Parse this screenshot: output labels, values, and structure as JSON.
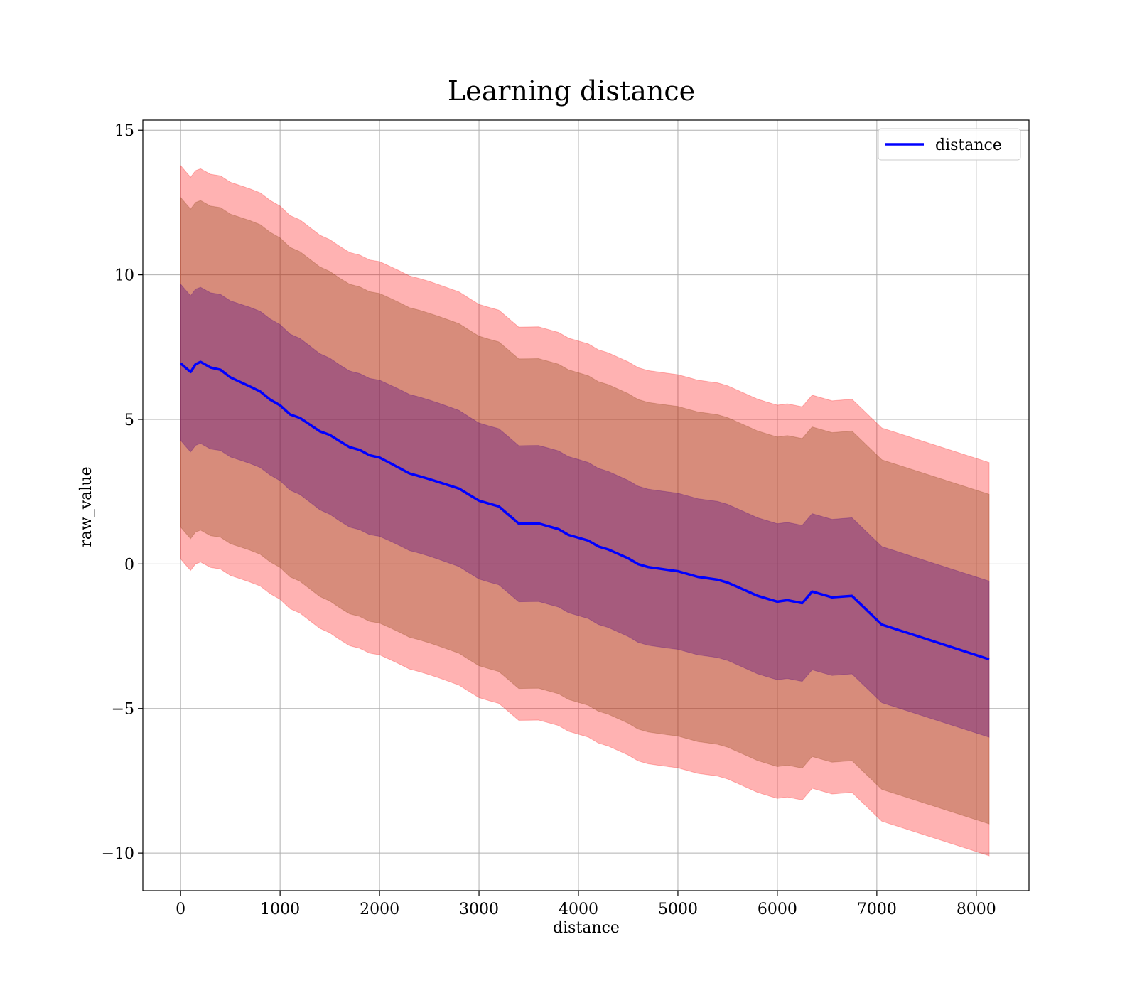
{
  "chart_data": {
    "type": "line",
    "title": "Learning distance",
    "xlabel": "distance",
    "ylabel": "raw_value",
    "xlim": [
      -380,
      8530
    ],
    "ylim": [
      -11.3,
      15.35
    ],
    "xticks": [
      0,
      1000,
      2000,
      3000,
      4000,
      5000,
      6000,
      7000,
      8000
    ],
    "xtick_labels": [
      "0",
      "1000",
      "2000",
      "3000",
      "4000",
      "5000",
      "6000",
      "7000",
      "8000"
    ],
    "yticks": [
      -10,
      -5,
      0,
      5,
      10,
      15
    ],
    "ytick_labels": [
      "−10",
      "−5",
      "0",
      "5",
      "10",
      "15"
    ],
    "grid": true,
    "legend": {
      "position": "top-right",
      "entries": [
        "distance"
      ]
    },
    "colors": {
      "line": "#0000ff",
      "band_outer": "#ff0000",
      "band_middle": "#8b4513",
      "band_inner": "#4b0082",
      "grid": "#b0b0b0"
    },
    "series": [
      {
        "name": "distance",
        "x": [
          0,
          50,
          100,
          150,
          200,
          300,
          400,
          500,
          600,
          700,
          800,
          900,
          1000,
          1100,
          1200,
          1300,
          1400,
          1500,
          1600,
          1700,
          1800,
          1900,
          2000,
          2100,
          2200,
          2300,
          2400,
          2500,
          2600,
          2700,
          2800,
          2900,
          3000,
          3100,
          3200,
          3300,
          3400,
          3500,
          3600,
          3700,
          3800,
          3900,
          4000,
          4100,
          4200,
          4300,
          4400,
          4500,
          4600,
          4700,
          4800,
          4900,
          5000,
          5100,
          5200,
          5300,
          5400,
          5500,
          5600,
          5700,
          5800,
          5900,
          6000,
          6100,
          6250,
          6350,
          6550,
          6750,
          7050,
          8130
        ],
        "y": [
          6.9,
          6.8,
          6.7,
          7.0,
          7.1,
          6.9,
          6.8,
          6.5,
          6.3,
          6.1,
          5.9,
          5.6,
          5.4,
          5.1,
          5.0,
          4.8,
          4.6,
          4.5,
          4.3,
          4.1,
          4.0,
          3.8,
          3.7,
          3.5,
          3.3,
          3.1,
          3.0,
          2.9,
          2.8,
          2.7,
          2.6,
          2.4,
          2.2,
          2.1,
          2.0,
          1.7,
          1.4,
          1.4,
          1.4,
          1.3,
          1.2,
          1.0,
          0.9,
          0.8,
          0.6,
          0.5,
          0.35,
          0.2,
          0.0,
          -0.1,
          -0.15,
          -0.2,
          -0.25,
          -0.35,
          -0.45,
          -0.5,
          -0.55,
          -0.65,
          -0.8,
          -0.95,
          -1.1,
          -1.2,
          -1.3,
          -1.25,
          -1.35,
          -0.95,
          -1.15,
          -1.1,
          -2.1,
          -3.3
        ]
      }
    ],
    "bands": [
      {
        "offset": 6.8,
        "color": "#ff0000",
        "opacity": 0.3
      },
      {
        "offset": 5.7,
        "color": "#8b4513",
        "opacity": 0.35
      },
      {
        "offset": 2.7,
        "color": "#4b0082",
        "opacity": 0.35
      }
    ]
  }
}
